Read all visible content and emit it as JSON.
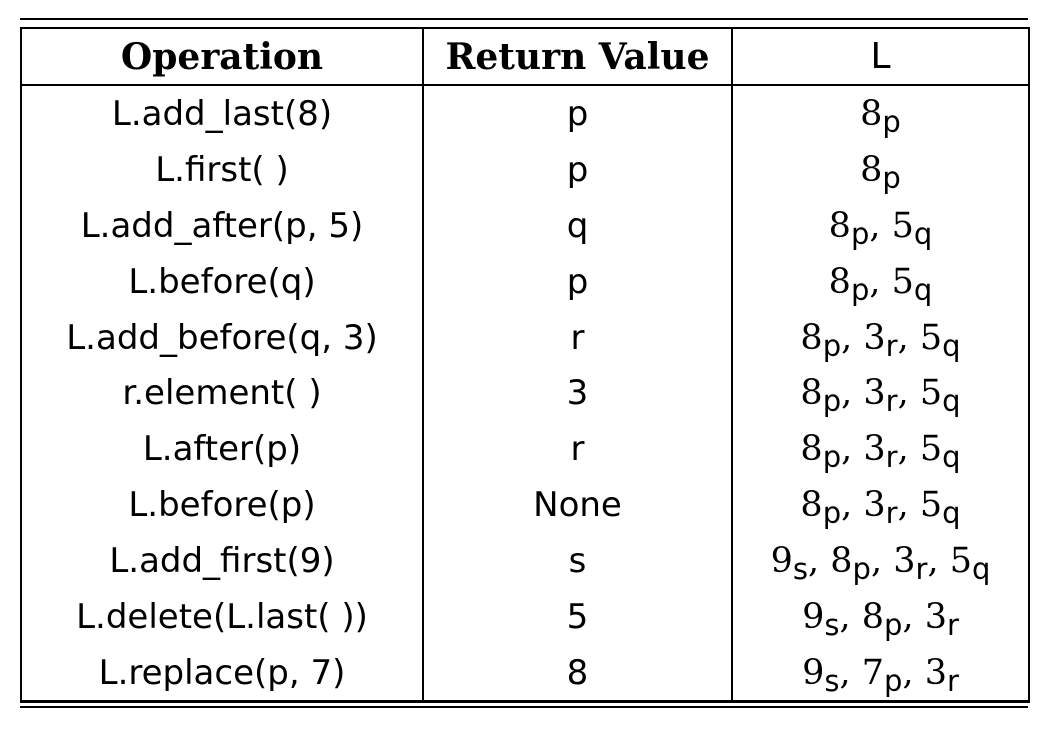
{
  "table": {
    "headers": [
      "Operation",
      "Return Value",
      "L"
    ],
    "rows": [
      {
        "operation": "L.add_last(8)",
        "return_value": "p",
        "list": [
          [
            "8",
            "p"
          ]
        ]
      },
      {
        "operation": "L.first( )",
        "return_value": "p",
        "list": [
          [
            "8",
            "p"
          ]
        ]
      },
      {
        "operation": "L.add_after(p, 5)",
        "return_value": "q",
        "list": [
          [
            "8",
            "p"
          ],
          [
            "5",
            "q"
          ]
        ]
      },
      {
        "operation": "L.before(q)",
        "return_value": "p",
        "list": [
          [
            "8",
            "p"
          ],
          [
            "5",
            "q"
          ]
        ]
      },
      {
        "operation": "L.add_before(q, 3)",
        "return_value": "r",
        "list": [
          [
            "8",
            "p"
          ],
          [
            "3",
            "r"
          ],
          [
            "5",
            "q"
          ]
        ]
      },
      {
        "operation": "r.element( )",
        "return_value": "3",
        "list": [
          [
            "8",
            "p"
          ],
          [
            "3",
            "r"
          ],
          [
            "5",
            "q"
          ]
        ]
      },
      {
        "operation": "L.after(p)",
        "return_value": "r",
        "list": [
          [
            "8",
            "p"
          ],
          [
            "3",
            "r"
          ],
          [
            "5",
            "q"
          ]
        ]
      },
      {
        "operation": "L.before(p)",
        "return_value": "None",
        "list": [
          [
            "8",
            "p"
          ],
          [
            "3",
            "r"
          ],
          [
            "5",
            "q"
          ]
        ]
      },
      {
        "operation": "L.add_first(9)",
        "return_value": "s",
        "list": [
          [
            "9",
            "s"
          ],
          [
            "8",
            "p"
          ],
          [
            "3",
            "r"
          ],
          [
            "5",
            "q"
          ]
        ]
      },
      {
        "operation": "L.delete(L.last( ))",
        "return_value": "5",
        "list": [
          [
            "9",
            "s"
          ],
          [
            "8",
            "p"
          ],
          [
            "3",
            "r"
          ]
        ]
      },
      {
        "operation": "L.replace(p, 7)",
        "return_value": "8",
        "list": [
          [
            "9",
            "s"
          ],
          [
            "7",
            "p"
          ],
          [
            "3",
            "r"
          ]
        ]
      }
    ]
  }
}
